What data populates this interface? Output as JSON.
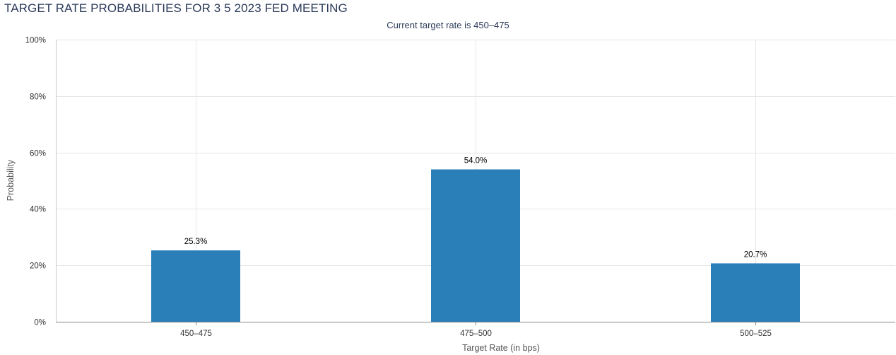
{
  "chart_data": {
    "type": "bar",
    "title": "TARGET RATE PROBABILITIES FOR 3 5 2023 FED MEETING",
    "subtitle": "Current target rate is 450–475",
    "xlabel": "Target Rate (in bps)",
    "ylabel": "Probability",
    "categories": [
      "450–475",
      "475–500",
      "500–525"
    ],
    "values": [
      25.3,
      54.0,
      20.7
    ],
    "data_labels": [
      "25.3%",
      "54.0%",
      "20.7%"
    ],
    "ylim": [
      0,
      100
    ],
    "yticks": [
      0,
      20,
      40,
      60,
      80,
      100
    ],
    "ytick_labels": [
      "0%",
      "20%",
      "40%",
      "60%",
      "80%",
      "100%"
    ],
    "grid": true,
    "bar_color": "#2a7fb8"
  }
}
